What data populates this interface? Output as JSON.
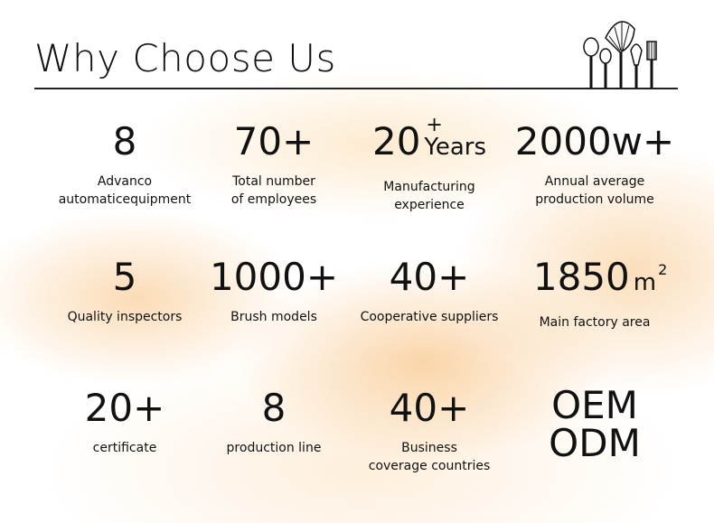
{
  "header": {
    "title": "Why Choose Us"
  },
  "stats": {
    "items": [
      {
        "value": "8",
        "label": [
          "Advanco",
          "automaticequipment"
        ]
      },
      {
        "value": "70+",
        "label": [
          "Total number",
          "of employees"
        ]
      },
      {
        "value": "20",
        "sup": "+",
        "unit": "Years",
        "label": [
          "Manufacturing",
          "experience"
        ]
      },
      {
        "value": "2000w+",
        "label": [
          "Annual average",
          "production volume"
        ]
      },
      {
        "value": "5",
        "label": [
          "Quality inspectors"
        ]
      },
      {
        "value": "1000+",
        "label": [
          "Brush models"
        ]
      },
      {
        "value": "40+",
        "label": [
          "Cooperative suppliers"
        ]
      },
      {
        "value": "1850",
        "unit": "m",
        "sup": "2",
        "label": [
          "Main factory area"
        ]
      },
      {
        "value": "20+",
        "label": [
          "certificate"
        ]
      },
      {
        "value": "8",
        "label": [
          "production line"
        ]
      },
      {
        "value": "40+",
        "label": [
          "Business",
          "coverage countries"
        ]
      },
      {
        "value": [
          "OEM",
          "ODM"
        ]
      }
    ]
  }
}
